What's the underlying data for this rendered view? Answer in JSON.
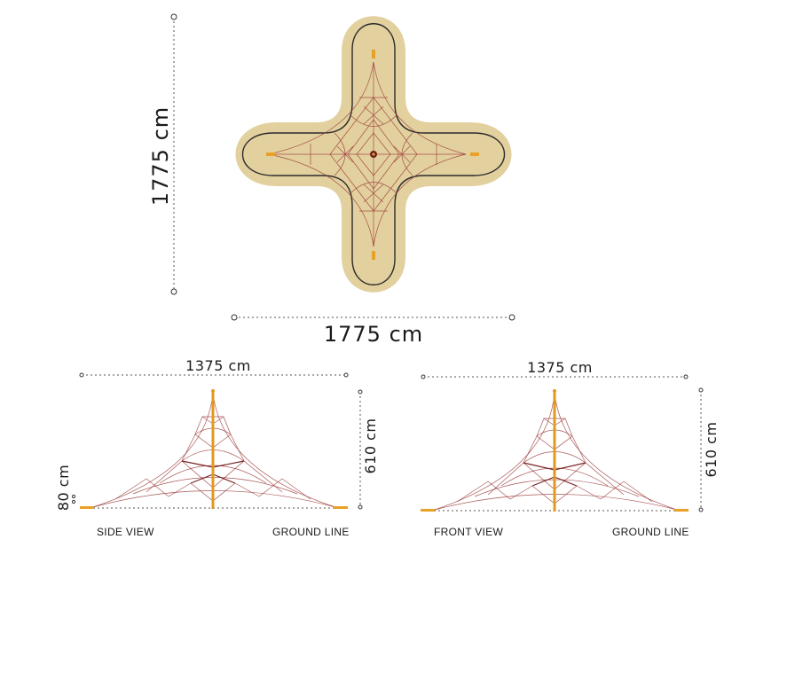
{
  "colors": {
    "surface": "#e2d09e",
    "surface_border": "#2b2b2b",
    "rope": "#9b3b3b",
    "pole": "#e09a1f",
    "anchor": "#e8a126"
  },
  "top_view": {
    "height_label": "1775 cm",
    "width_label": "1775 cm"
  },
  "side_view": {
    "width_label": "1375 cm",
    "height_label": "610 cm",
    "base_height_label": "80 cm",
    "view_label": "SIDE VIEW",
    "ground_label": "GROUND LINE"
  },
  "front_view": {
    "width_label": "1375 cm",
    "height_label": "610 cm",
    "view_label": "FRONT VIEW",
    "ground_label": "GROUND LINE"
  }
}
